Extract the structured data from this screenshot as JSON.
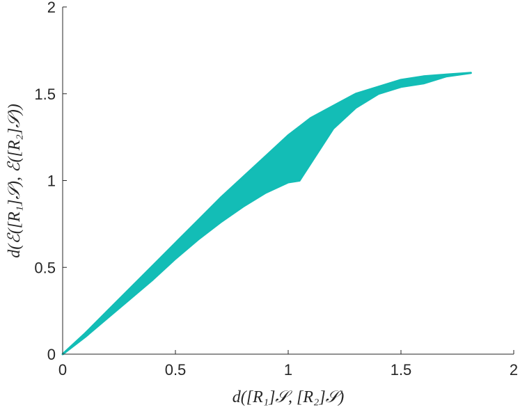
{
  "chart_data": {
    "type": "band",
    "xlabel": "d([R₁]𝒮, [R₂]𝒮)",
    "ylabel": "d(ℰ([R₁]𝒮), ℰ([R₂]𝒮))",
    "color": "#13bdb6",
    "x": [
      0,
      0.1,
      0.2,
      0.3,
      0.4,
      0.5,
      0.6,
      0.7,
      0.8,
      0.9,
      1.0,
      1.05,
      1.1,
      1.2,
      1.3,
      1.4,
      1.5,
      1.6,
      1.7,
      1.81
    ],
    "upper": [
      0,
      0.12,
      0.25,
      0.38,
      0.51,
      0.64,
      0.77,
      0.9,
      1.02,
      1.14,
      1.26,
      1.31,
      1.36,
      1.43,
      1.5,
      1.54,
      1.58,
      1.6,
      1.61,
      1.62
    ],
    "lower": [
      0,
      0.1,
      0.21,
      0.32,
      0.43,
      0.55,
      0.66,
      0.76,
      0.85,
      0.93,
      0.99,
      1.0,
      1.1,
      1.3,
      1.42,
      1.5,
      1.54,
      1.56,
      1.6,
      1.62
    ],
    "xlim": [
      0,
      2
    ],
    "ylim": [
      0,
      2
    ],
    "xticks": [
      0,
      0.5,
      1,
      1.5,
      2
    ],
    "yticks": [
      0,
      0.5,
      1,
      1.5,
      2
    ]
  }
}
